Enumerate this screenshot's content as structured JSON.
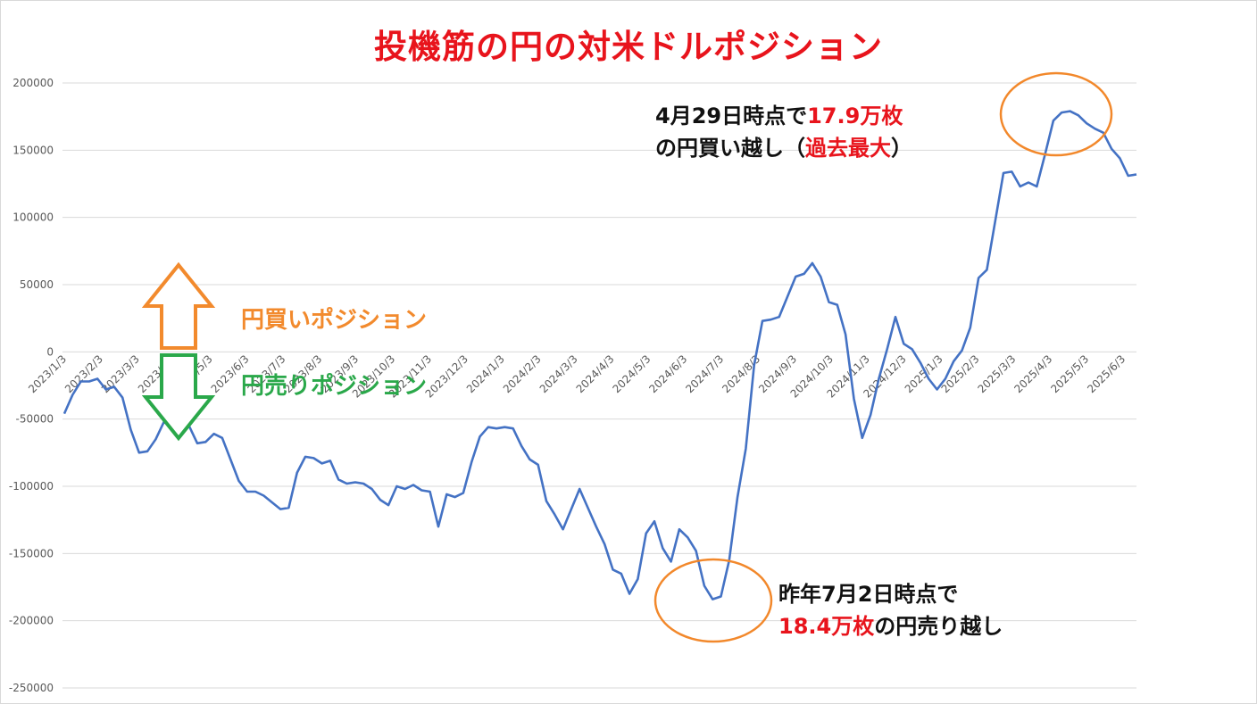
{
  "title": "投機筋の円の対米ドルポジション",
  "colors": {
    "line": "#4472c4",
    "title": "#e8141c",
    "circle": "#f2882b",
    "buy": "#f28a2d",
    "sell": "#2aa84a"
  },
  "labels": {
    "buy": "円買いポジション",
    "sell": "円売りポジション"
  },
  "annotation_peak": {
    "line1_prefix": "4月29日時点で",
    "line1_value": "17.9万枚",
    "line2_prefix": "の円買い越し（",
    "line2_value": "過去最大",
    "line2_suffix": "）"
  },
  "annotation_trough": {
    "line1": "昨年7月2日時点で",
    "line2_value": "18.4万枚",
    "line2_suffix": "の円売り越し"
  },
  "chart_data": {
    "type": "line",
    "ylim": [
      -250000,
      200000
    ],
    "yticks": [
      "200000",
      "150000",
      "100000",
      "50000",
      "0",
      "-50000",
      "-100000",
      "-150000",
      "-200000",
      "-250000"
    ],
    "xticks": [
      "2023/1/3",
      "2023/2/3",
      "2023/3/3",
      "2023/4/3",
      "2023/5/3",
      "2023/6/3",
      "2023/7/3",
      "2023/8/3",
      "2023/9/3",
      "2023/10/3",
      "2023/11/3",
      "2023/12/3",
      "2024/1/3",
      "2024/2/3",
      "2024/3/3",
      "2024/4/3",
      "2024/5/3",
      "2024/6/3",
      "2024/7/3",
      "2024/8/3",
      "2024/9/3",
      "2024/10/3",
      "2024/11/3",
      "2024/12/3",
      "2025/1/3",
      "2025/2/3",
      "2025/3/3",
      "2025/4/3",
      "2025/5/3",
      "2025/6/3"
    ],
    "series": [
      {
        "values": [
          -46000,
          -32000,
          -22000,
          -22000,
          -20000,
          -28000,
          -26000,
          -34000,
          -58000,
          -75000,
          -74000,
          -65000,
          -52000,
          -56000,
          -58000,
          -55000,
          -68000,
          -67000,
          -61000,
          -64000,
          -80000,
          -96000,
          -104000,
          -104000,
          -107000,
          -112000,
          -117000,
          -116000,
          -90000,
          -78000,
          -79000,
          -83000,
          -81000,
          -95000,
          -98000,
          -97000,
          -98000,
          -102000,
          -110000,
          -114000,
          -100000,
          -102000,
          -99000,
          -103000,
          -104000,
          -130000,
          -106000,
          -108000,
          -105000,
          -82000,
          -63000,
          -56000,
          -57000,
          -56000,
          -57000,
          -70000,
          -80000,
          -84000,
          -111000,
          -121000,
          -132000,
          -117000,
          -102000,
          -116000,
          -130000,
          -143000,
          -162000,
          -165000,
          -180000,
          -169000,
          -135000,
          -126000,
          -146000,
          -156000,
          -132000,
          -138000,
          -148000,
          -174000,
          -184000,
          -182000,
          -155000,
          -108000,
          -72000,
          -10000,
          23000,
          24000,
          26000,
          41000,
          56000,
          58000,
          66000,
          56000,
          37000,
          35000,
          13000,
          -35000,
          -64000,
          -47000,
          -20000,
          2000,
          26000,
          6000,
          2000,
          -8000,
          -20000,
          -28000,
          -20000,
          -7000,
          1000,
          18000,
          55000,
          61000,
          97000,
          133000,
          134000,
          123000,
          126000,
          123000,
          147000,
          172000,
          178000,
          179000,
          176000,
          170000,
          166000,
          163000,
          151000,
          144000,
          131000,
          132000
        ]
      }
    ]
  }
}
